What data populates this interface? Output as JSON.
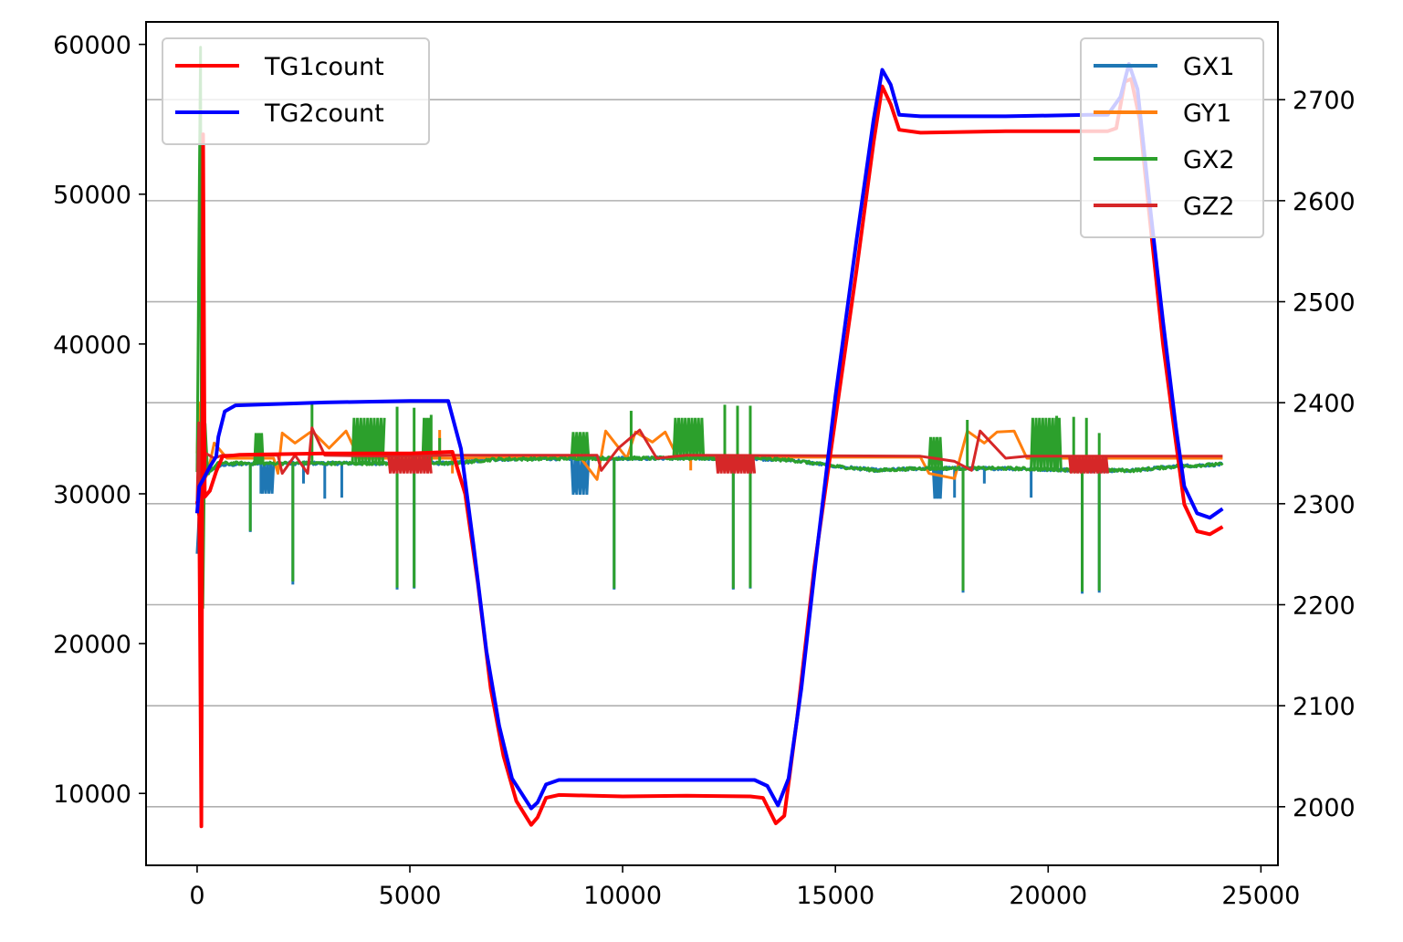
{
  "chart_data": {
    "type": "line",
    "x_axis": {
      "ticks": [
        0,
        5000,
        10000,
        15000,
        20000,
        25000
      ],
      "lim": [
        -1200,
        25400
      ]
    },
    "y_left": {
      "ticks": [
        10000,
        20000,
        30000,
        40000,
        50000,
        60000
      ],
      "lim": [
        5200,
        61500
      ]
    },
    "y_right": {
      "ticks": [
        2000,
        2100,
        2200,
        2300,
        2400,
        2500,
        2600,
        2700
      ],
      "lim": [
        1942,
        2777
      ]
    },
    "grid": "horizontal lines at right-axis ticks",
    "legend_left": {
      "placement": "upper-left",
      "entries": [
        "TG1count",
        "TG2count"
      ]
    },
    "legend_right": {
      "placement": "upper-right",
      "entries": [
        "GX1",
        "GY1",
        "GX2",
        "GZ2"
      ]
    },
    "series": [
      {
        "name": "TG1count",
        "axis": "left",
        "color": "#ff0000",
        "noise": 0,
        "points": [
          [
            0,
            29500
          ],
          [
            50,
            28500
          ],
          [
            100,
            7800
          ],
          [
            140,
            54000
          ],
          [
            180,
            29800
          ],
          [
            300,
            30200
          ],
          [
            450,
            31500
          ],
          [
            600,
            32500
          ],
          [
            1000,
            32600
          ],
          [
            3000,
            32700
          ],
          [
            5000,
            32700
          ],
          [
            6000,
            32800
          ],
          [
            6300,
            30000
          ],
          [
            6600,
            24000
          ],
          [
            6900,
            17000
          ],
          [
            7200,
            12500
          ],
          [
            7500,
            9500
          ],
          [
            7850,
            7900
          ],
          [
            8000,
            8400
          ],
          [
            8200,
            9700
          ],
          [
            8500,
            9900
          ],
          [
            10000,
            9800
          ],
          [
            11500,
            9850
          ],
          [
            13000,
            9800
          ],
          [
            13300,
            9700
          ],
          [
            13600,
            8000
          ],
          [
            13800,
            8500
          ],
          [
            14100,
            15000
          ],
          [
            14500,
            25000
          ],
          [
            15000,
            35000
          ],
          [
            15500,
            45000
          ],
          [
            15900,
            53500
          ],
          [
            16100,
            57200
          ],
          [
            16300,
            56000
          ],
          [
            16500,
            54300
          ],
          [
            17000,
            54100
          ],
          [
            19000,
            54200
          ],
          [
            21000,
            54200
          ],
          [
            21400,
            54200
          ],
          [
            21600,
            54400
          ],
          [
            21800,
            57500
          ],
          [
            21950,
            57700
          ],
          [
            22150,
            55000
          ],
          [
            22400,
            48000
          ],
          [
            22700,
            40000
          ],
          [
            23000,
            33500
          ],
          [
            23200,
            29300
          ],
          [
            23500,
            27500
          ],
          [
            23800,
            27300
          ],
          [
            24100,
            27800
          ]
        ]
      },
      {
        "name": "TG2count",
        "axis": "left",
        "color": "#0000ff",
        "noise": 0,
        "points": [
          [
            0,
            28700
          ],
          [
            50,
            30500
          ],
          [
            150,
            31000
          ],
          [
            300,
            31800
          ],
          [
            450,
            32500
          ],
          [
            500,
            33800
          ],
          [
            650,
            35500
          ],
          [
            900,
            35900
          ],
          [
            3000,
            36100
          ],
          [
            5000,
            36200
          ],
          [
            5900,
            36200
          ],
          [
            6200,
            33000
          ],
          [
            6500,
            26500
          ],
          [
            6800,
            19500
          ],
          [
            7100,
            14500
          ],
          [
            7400,
            11000
          ],
          [
            7850,
            9000
          ],
          [
            8000,
            9400
          ],
          [
            8200,
            10600
          ],
          [
            8500,
            10900
          ],
          [
            10000,
            10900
          ],
          [
            11500,
            10900
          ],
          [
            13100,
            10900
          ],
          [
            13400,
            10500
          ],
          [
            13650,
            9200
          ],
          [
            13900,
            11000
          ],
          [
            14200,
            17000
          ],
          [
            14600,
            27000
          ],
          [
            15000,
            36500
          ],
          [
            15500,
            47000
          ],
          [
            15900,
            55000
          ],
          [
            16100,
            58300
          ],
          [
            16300,
            57300
          ],
          [
            16500,
            55300
          ],
          [
            17000,
            55200
          ],
          [
            19000,
            55200
          ],
          [
            21000,
            55300
          ],
          [
            21400,
            55300
          ],
          [
            21700,
            56500
          ],
          [
            21900,
            58700
          ],
          [
            22100,
            57000
          ],
          [
            22400,
            49000
          ],
          [
            22700,
            41500
          ],
          [
            23000,
            34500
          ],
          [
            23200,
            30500
          ],
          [
            23500,
            28700
          ],
          [
            23800,
            28400
          ],
          [
            24100,
            29000
          ]
        ]
      },
      {
        "name": "GX1",
        "axis": "right",
        "color": "#1f77b4",
        "noise": 1.5,
        "points": [
          [
            0,
            2250
          ],
          [
            70,
            2310
          ],
          [
            100,
            2220
          ],
          [
            150,
            2350
          ],
          [
            200,
            2330
          ],
          [
            500,
            2338
          ],
          [
            1500,
            2340
          ],
          [
            3000,
            2340
          ],
          [
            5000,
            2340
          ],
          [
            6000,
            2340
          ],
          [
            7000,
            2344
          ],
          [
            9000,
            2345
          ],
          [
            11000,
            2345
          ],
          [
            13000,
            2345
          ],
          [
            14000,
            2343
          ],
          [
            15000,
            2337
          ],
          [
            16000,
            2333
          ],
          [
            17000,
            2335
          ],
          [
            19000,
            2335
          ],
          [
            21000,
            2333
          ],
          [
            22000,
            2333
          ],
          [
            23000,
            2337
          ],
          [
            24100,
            2339
          ]
        ],
        "spikes": [
          [
            1250,
            2272
          ],
          [
            2250,
            2220
          ],
          [
            4700,
            2215
          ],
          [
            5100,
            2216
          ],
          [
            9800,
            2215
          ],
          [
            12600,
            2215
          ],
          [
            13000,
            2216
          ],
          [
            18000,
            2212
          ],
          [
            20800,
            2211
          ],
          [
            21200,
            2212
          ],
          [
            3000,
            2305
          ],
          [
            3400,
            2306
          ],
          [
            8900,
            2311
          ],
          [
            17800,
            2306
          ],
          [
            19600,
            2306
          ],
          [
            1500,
            2310
          ],
          [
            2500,
            2320
          ],
          [
            18500,
            2320
          ]
        ],
        "steps": [
          [
            1500,
            1800,
            2310
          ],
          [
            8800,
            9200,
            2309
          ],
          [
            17300,
            17500,
            2305
          ]
        ]
      },
      {
        "name": "GY1",
        "axis": "right",
        "color": "#ff7f0e",
        "noise": 0,
        "points": [
          [
            0,
            2350
          ],
          [
            40,
            2400
          ],
          [
            80,
            2300
          ],
          [
            120,
            2320
          ],
          [
            250,
            2330
          ],
          [
            400,
            2360
          ],
          [
            700,
            2345
          ],
          [
            1800,
            2345
          ],
          [
            1900,
            2330
          ],
          [
            2000,
            2370
          ],
          [
            2300,
            2360
          ],
          [
            2700,
            2372
          ],
          [
            3100,
            2355
          ],
          [
            3500,
            2372
          ],
          [
            3800,
            2345
          ],
          [
            6000,
            2345
          ],
          [
            8000,
            2346
          ],
          [
            9000,
            2346
          ],
          [
            9400,
            2324
          ],
          [
            9600,
            2372
          ],
          [
            10100,
            2345
          ],
          [
            10300,
            2371
          ],
          [
            10700,
            2361
          ],
          [
            11000,
            2371
          ],
          [
            11300,
            2345
          ],
          [
            12000,
            2346
          ],
          [
            17000,
            2346
          ],
          [
            17200,
            2330
          ],
          [
            17800,
            2325
          ],
          [
            18100,
            2372
          ],
          [
            18500,
            2360
          ],
          [
            18800,
            2371
          ],
          [
            19200,
            2372
          ],
          [
            19500,
            2345
          ],
          [
            24100,
            2345
          ]
        ],
        "spikes": [
          [
            150,
            2390
          ],
          [
            5700,
            2373
          ],
          [
            11600,
            2333
          ],
          [
            6000,
            2330
          ]
        ],
        "steps": []
      },
      {
        "name": "GX2",
        "axis": "right",
        "color": "#2ca02c",
        "noise": 1.5,
        "points": [
          [
            0,
            2330
          ],
          [
            80,
            2760
          ],
          [
            100,
            2230
          ],
          [
            140,
            2190
          ],
          [
            180,
            2385
          ],
          [
            250,
            2330
          ],
          [
            500,
            2340
          ],
          [
            1500,
            2340
          ],
          [
            3000,
            2340
          ],
          [
            5000,
            2340
          ],
          [
            6000,
            2340
          ],
          [
            7000,
            2344
          ],
          [
            9000,
            2345
          ],
          [
            11000,
            2345
          ],
          [
            13000,
            2345
          ],
          [
            14000,
            2343
          ],
          [
            15000,
            2337
          ],
          [
            16000,
            2333
          ],
          [
            17000,
            2335
          ],
          [
            19000,
            2335
          ],
          [
            21000,
            2333
          ],
          [
            22000,
            2333
          ],
          [
            23000,
            2337
          ],
          [
            24100,
            2339
          ]
        ],
        "spikes": [
          [
            2700,
            2400
          ],
          [
            4700,
            2396
          ],
          [
            5100,
            2395
          ],
          [
            5500,
            2388
          ],
          [
            5700,
            2365
          ],
          [
            10200,
            2392
          ],
          [
            12400,
            2398
          ],
          [
            12700,
            2397
          ],
          [
            13000,
            2397
          ],
          [
            18100,
            2383
          ],
          [
            20200,
            2387
          ],
          [
            20600,
            2386
          ],
          [
            20900,
            2385
          ],
          [
            21200,
            2370
          ],
          [
            1250,
            2273
          ],
          [
            2250,
            2223
          ],
          [
            4700,
            2217
          ],
          [
            5100,
            2217
          ],
          [
            9800,
            2216
          ],
          [
            12600,
            2216
          ],
          [
            13000,
            2217
          ],
          [
            18000,
            2214
          ],
          [
            20800,
            2213
          ],
          [
            21200,
            2214
          ]
        ],
        "steps": [
          [
            1350,
            1550,
            2370
          ],
          [
            3650,
            4400,
            2385
          ],
          [
            5300,
            5500,
            2385
          ],
          [
            8800,
            9200,
            2371
          ],
          [
            11200,
            11900,
            2385
          ],
          [
            17200,
            17500,
            2366
          ],
          [
            19600,
            20300,
            2385
          ]
        ]
      },
      {
        "name": "GZ2",
        "axis": "right",
        "color": "#d62728",
        "noise": 0,
        "points": [
          [
            0,
            2300
          ],
          [
            40,
            2380
          ],
          [
            80,
            2220
          ],
          [
            120,
            2310
          ],
          [
            200,
            2350
          ],
          [
            400,
            2345
          ],
          [
            600,
            2348
          ],
          [
            1900,
            2348
          ],
          [
            2000,
            2330
          ],
          [
            2300,
            2348
          ],
          [
            2600,
            2330
          ],
          [
            2700,
            2375
          ],
          [
            3000,
            2348
          ],
          [
            4500,
            2347
          ],
          [
            6000,
            2348
          ],
          [
            8000,
            2348
          ],
          [
            9000,
            2348
          ],
          [
            9400,
            2348
          ],
          [
            9500,
            2333
          ],
          [
            9900,
            2355
          ],
          [
            10400,
            2373
          ],
          [
            10800,
            2345
          ],
          [
            11500,
            2348
          ],
          [
            17000,
            2347
          ],
          [
            17800,
            2342
          ],
          [
            18200,
            2333
          ],
          [
            18400,
            2372
          ],
          [
            19000,
            2345
          ],
          [
            19500,
            2347
          ],
          [
            24100,
            2347
          ]
        ],
        "spikes": [],
        "steps": [
          [
            4500,
            5500,
            2330
          ],
          [
            12200,
            13100,
            2330
          ],
          [
            20500,
            21400,
            2330
          ]
        ]
      }
    ]
  }
}
